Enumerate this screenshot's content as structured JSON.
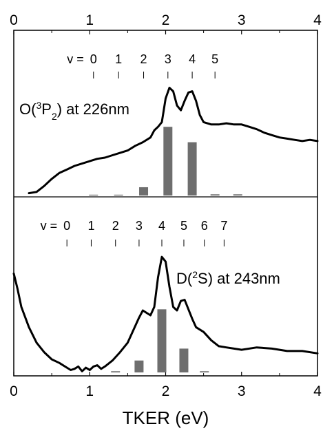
{
  "chart_data": {
    "type": "line",
    "xlabel": "TKER (eV)",
    "xlim": [
      0,
      4
    ],
    "x_ticks": [
      0,
      1,
      2,
      3,
      4
    ],
    "x_tick_labels": [
      "0",
      "1",
      "2",
      "3",
      "4"
    ],
    "grid": false,
    "panels": [
      {
        "id": "top",
        "label_parts": {
          "pre": "O(",
          "sup": "3",
          "mid": "P",
          "sub": "2",
          "post": ") at 226nm"
        },
        "vib_prefix": "v =",
        "vib_levels": [
          {
            "label": "0",
            "x": 1.05
          },
          {
            "label": "1",
            "x": 1.38
          },
          {
            "label": "2",
            "x": 1.71
          },
          {
            "label": "3",
            "x": 2.03
          },
          {
            "label": "4",
            "x": 2.35
          },
          {
            "label": "5",
            "x": 2.65
          }
        ],
        "ylim": [
          0,
          1
        ],
        "line": {
          "x": [
            0.2,
            0.3,
            0.4,
            0.5,
            0.6,
            0.7,
            0.8,
            0.9,
            1.0,
            1.1,
            1.2,
            1.3,
            1.4,
            1.5,
            1.6,
            1.7,
            1.8,
            1.85,
            1.9,
            1.95,
            2.0,
            2.05,
            2.1,
            2.15,
            2.2,
            2.25,
            2.3,
            2.35,
            2.4,
            2.45,
            2.5,
            2.6,
            2.7,
            2.8,
            2.9,
            3.0,
            3.1,
            3.2,
            3.3,
            3.4,
            3.5,
            3.6,
            3.7,
            3.8,
            3.9,
            4.0
          ],
          "y": [
            0.02,
            0.03,
            0.08,
            0.14,
            0.19,
            0.22,
            0.25,
            0.27,
            0.29,
            0.31,
            0.32,
            0.34,
            0.36,
            0.38,
            0.42,
            0.45,
            0.49,
            0.55,
            0.58,
            0.62,
            0.82,
            0.91,
            0.88,
            0.76,
            0.72,
            0.8,
            0.87,
            0.88,
            0.8,
            0.68,
            0.62,
            0.6,
            0.6,
            0.61,
            0.6,
            0.6,
            0.58,
            0.56,
            0.53,
            0.51,
            0.49,
            0.48,
            0.47,
            0.46,
            0.47,
            0.46
          ]
        },
        "bars": [
          {
            "x": 1.05,
            "value": 0.0
          },
          {
            "x": 1.38,
            "value": 0.0
          },
          {
            "x": 1.71,
            "value": 0.07
          },
          {
            "x": 2.03,
            "value": 0.58
          },
          {
            "x": 2.35,
            "value": 0.45
          },
          {
            "x": 2.65,
            "value": 0.01
          },
          {
            "x": 2.95,
            "value": 0.01
          }
        ]
      },
      {
        "id": "bottom",
        "label_parts": {
          "pre": "D(",
          "sup": "2",
          "mid": "S",
          "sub": "",
          "post": ") at 243nm"
        },
        "vib_prefix": "v =",
        "vib_levels": [
          {
            "label": "0",
            "x": 0.7
          },
          {
            "label": "1",
            "x": 1.02
          },
          {
            "label": "2",
            "x": 1.34
          },
          {
            "label": "3",
            "x": 1.65
          },
          {
            "label": "4",
            "x": 1.95
          },
          {
            "label": "5",
            "x": 2.24
          },
          {
            "label": "6",
            "x": 2.51
          },
          {
            "label": "7",
            "x": 2.77
          }
        ],
        "ylim": [
          0,
          1
        ],
        "line": {
          "x": [
            0.0,
            0.05,
            0.1,
            0.2,
            0.3,
            0.4,
            0.5,
            0.6,
            0.7,
            0.75,
            0.8,
            0.85,
            0.9,
            0.95,
            1.0,
            1.05,
            1.1,
            1.15,
            1.2,
            1.3,
            1.4,
            1.5,
            1.6,
            1.65,
            1.7,
            1.75,
            1.8,
            1.85,
            1.9,
            1.95,
            2.0,
            2.05,
            2.1,
            2.15,
            2.2,
            2.25,
            2.3,
            2.35,
            2.4,
            2.5,
            2.6,
            2.7,
            2.8,
            2.9,
            3.0,
            3.2,
            3.4,
            3.6,
            3.8,
            4.0
          ],
          "y": [
            0.83,
            0.7,
            0.55,
            0.38,
            0.25,
            0.17,
            0.11,
            0.08,
            0.04,
            0.02,
            0.03,
            0.05,
            0.01,
            0.04,
            0.02,
            0.05,
            0.06,
            0.03,
            0.05,
            0.1,
            0.17,
            0.25,
            0.39,
            0.46,
            0.52,
            0.5,
            0.48,
            0.55,
            0.8,
            0.97,
            0.93,
            0.72,
            0.55,
            0.52,
            0.6,
            0.61,
            0.53,
            0.45,
            0.38,
            0.34,
            0.27,
            0.22,
            0.21,
            0.2,
            0.19,
            0.21,
            0.2,
            0.18,
            0.18,
            0.16
          ]
        },
        "bars": [
          {
            "x": 1.34,
            "value": 0.01
          },
          {
            "x": 1.65,
            "value": 0.1
          },
          {
            "x": 1.95,
            "value": 0.53
          },
          {
            "x": 2.24,
            "value": 0.2
          },
          {
            "x": 2.51,
            "value": 0.01
          }
        ]
      }
    ]
  },
  "colors": {
    "line": "#000000",
    "bar": "#6e6e6e",
    "axis": "#000000"
  }
}
